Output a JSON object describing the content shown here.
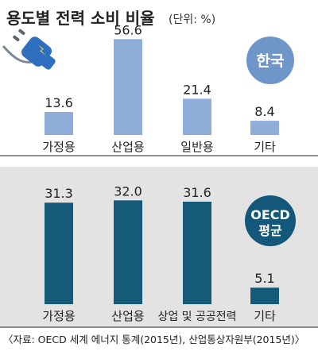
{
  "title": "용도별 전력 소비 비율",
  "unit": "(단위: %)",
  "source": "〈자료: OECD 세계 에너지 통계(2015년), 산업통상자원부(2015년)〉",
  "colors": {
    "korea_bar": "#8eaed9",
    "oecd_bar": "#165a7a",
    "korea_badge": "#6f96c9",
    "oecd_badge": "#13577a",
    "bottom_panel": "#e3e3e3",
    "plug": "#2f6fc0"
  },
  "chart_data": [
    {
      "type": "bar",
      "panel": "top",
      "badge": "한국",
      "categories": [
        "가정용",
        "산업용",
        "일반용",
        "기타"
      ],
      "values": [
        13.6,
        56.6,
        21.4,
        8.4
      ],
      "value_labels": [
        "13.6",
        "56.6",
        "21.4",
        "8.4"
      ],
      "ylim": [
        0,
        60
      ]
    },
    {
      "type": "bar",
      "panel": "bottom",
      "badge": [
        "OECD",
        "평균"
      ],
      "categories": [
        "가정용",
        "산업용",
        "상업 및 공공전력",
        "기타"
      ],
      "values": [
        31.3,
        32.0,
        31.6,
        5.1
      ],
      "value_labels": [
        "31.3",
        "32.0",
        "31.6",
        "5.1"
      ],
      "ylim": [
        0,
        36
      ]
    }
  ]
}
